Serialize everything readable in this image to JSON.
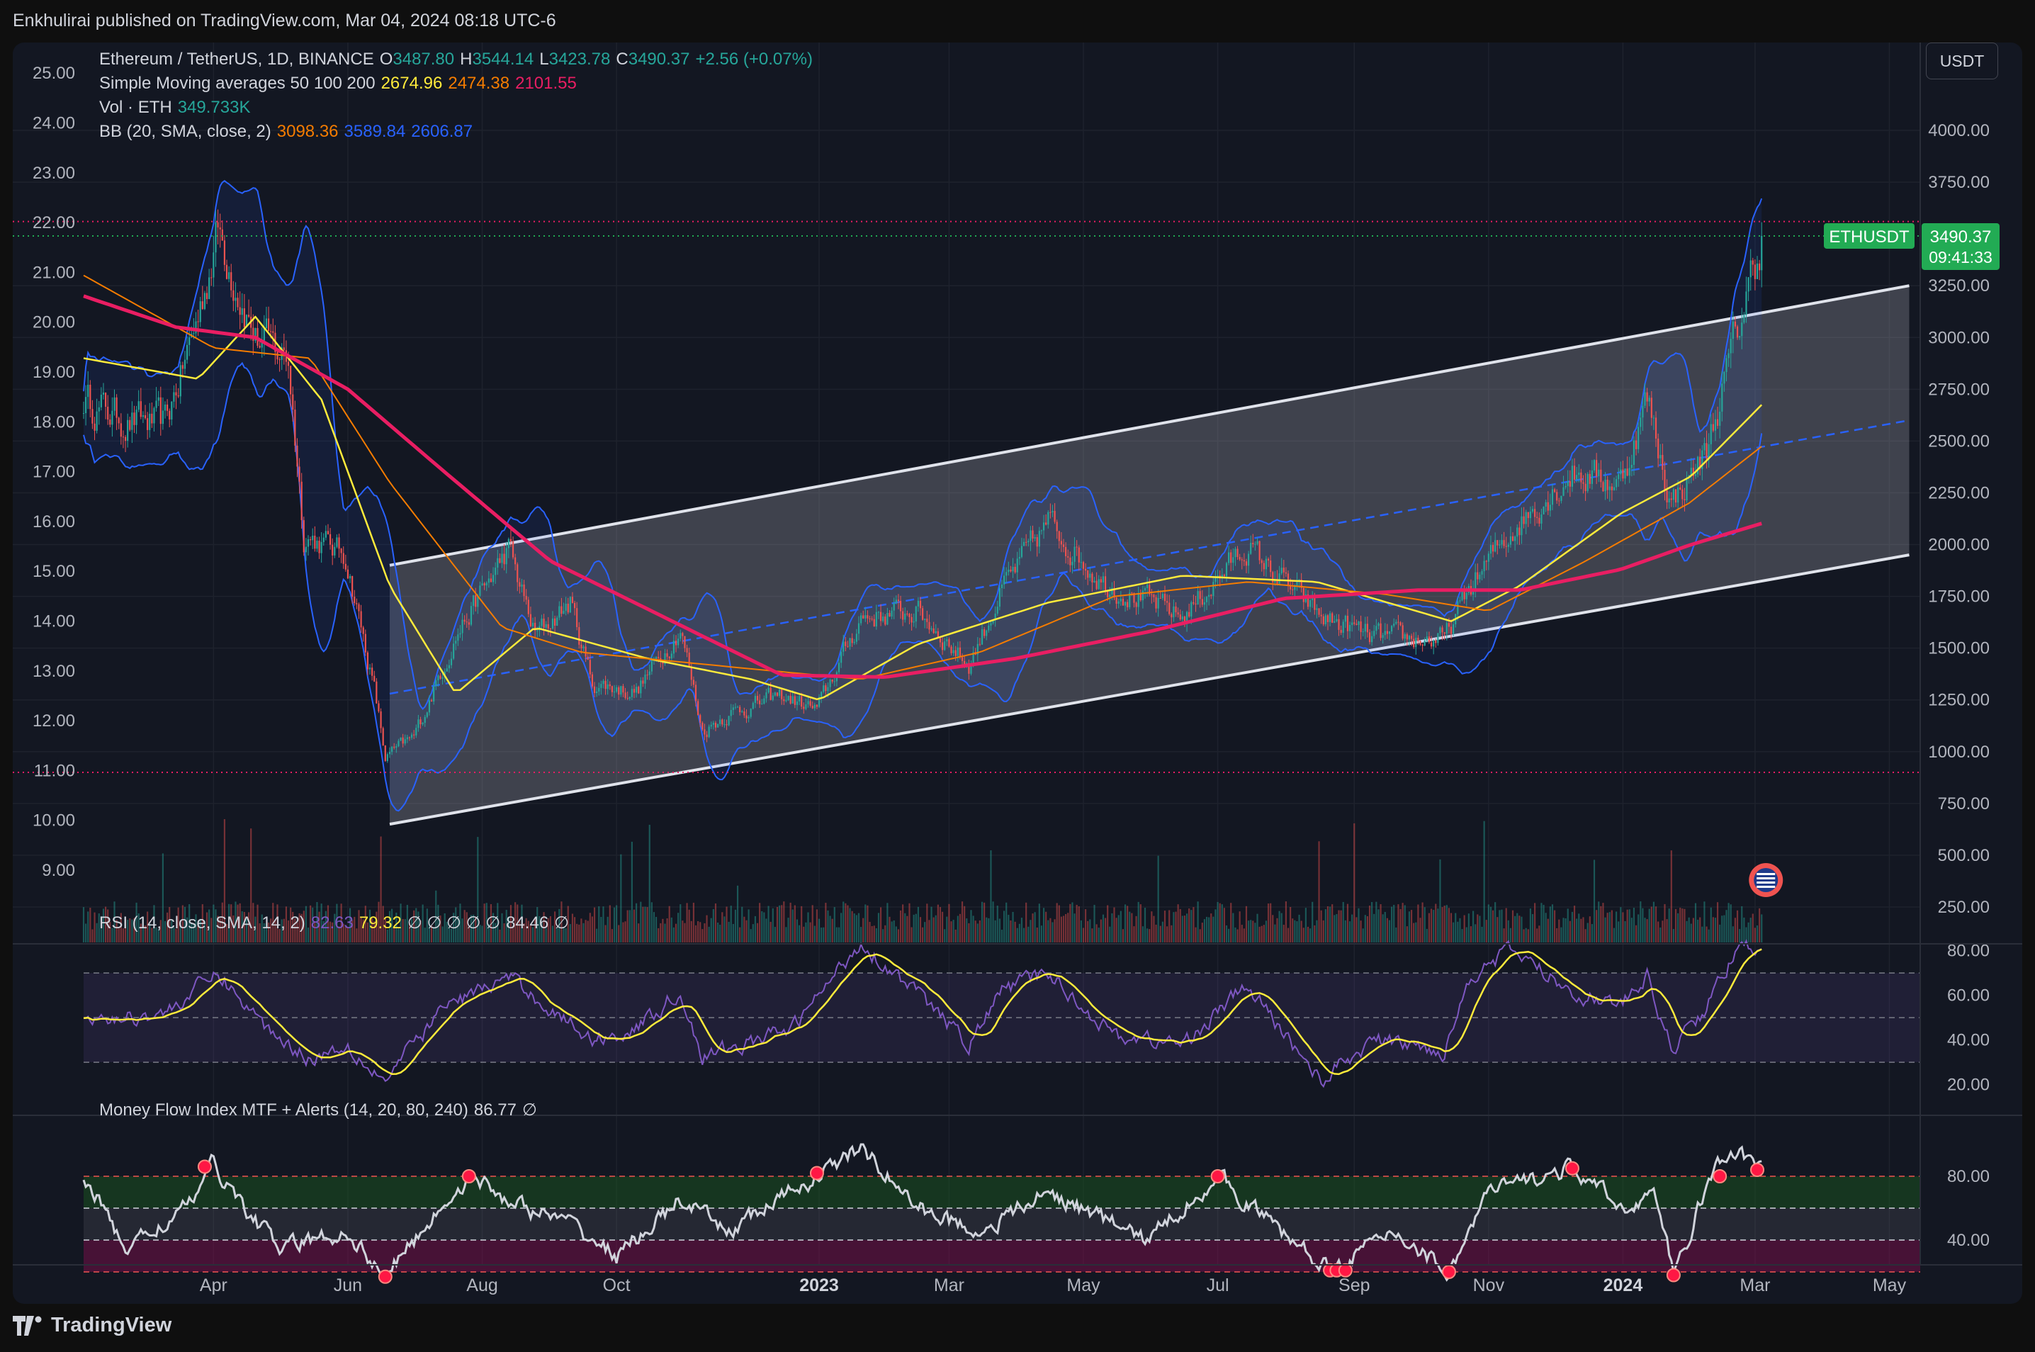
{
  "publisher_line": "Enkhulirai published on TradingView.com, Mar 04, 2024 08:18 UTC-6",
  "footer": {
    "logo_text": "TradingView"
  },
  "currency_button": "USDT",
  "legend": {
    "symbol": "Ethereum / TetherUS, 1D, BINANCE",
    "o_label": "O",
    "o_value": "3487.80",
    "h_label": "H",
    "h_value": "3544.14",
    "l_label": "L",
    "l_value": "3423.78",
    "c_label": "C",
    "c_value": "3490.37",
    "change": "+2.56 (+0.07%)",
    "sma_label": "Simple Moving averages 50 100 200",
    "sma50": "2674.96",
    "sma100": "2474.38",
    "sma200": "2101.55",
    "vol_label": "Vol · ETH",
    "vol_value": "349.733K",
    "bb_label": "BB (20, SMA, close, 2)",
    "bb_basis": "3098.36",
    "bb_upper": "3589.84",
    "bb_lower": "2606.87",
    "rsi_label": "RSI (14, close, SMA, 14, 2)",
    "rsi_value": "82.63",
    "rsi_ma": "79.32",
    "rsi_null": "∅ ∅ ∅ ∅ ∅",
    "rsi_extra": "84.46",
    "rsi_null2": "∅",
    "mfi_label": "Money Flow Index MTF + Alerts (14, 20, 80, 240)",
    "mfi_value": "86.77",
    "mfi_null": "∅"
  },
  "price_badge": {
    "symbol": "ETHUSDT",
    "price": "3490.37",
    "countdown": "09:41:33"
  },
  "colors": {
    "background": "#131722",
    "up": "#26a69a",
    "down": "#ef5350",
    "sma50": "#ffeb3b",
    "sma100": "#f57c00",
    "sma200": "#e91e63",
    "bb_band": "#2962ff",
    "rsi": "#7e57c2",
    "mfi": "#d1d4dc",
    "channel": "#e0e3eb",
    "badge": "#22ab54"
  },
  "chart_data": [
    {
      "type": "candlestick",
      "title": "Ethereum / TetherUS, 1D, BINANCE",
      "right_axis": {
        "label": "USDT",
        "ticks": [
          "250.00",
          "500.00",
          "750.00",
          "1000.00",
          "1250.00",
          "1500.00",
          "1750.00",
          "2000.00",
          "2250.00",
          "2500.00",
          "2750.00",
          "3000.00",
          "3250.00",
          "3750.00",
          "4000.00"
        ]
      },
      "left_axis": {
        "ticks": [
          "9.00",
          "10.00",
          "11.00",
          "12.00",
          "13.00",
          "14.00",
          "15.00",
          "16.00",
          "17.00",
          "18.00",
          "19.00",
          "20.00",
          "21.00",
          "22.00",
          "23.00",
          "24.00",
          "25.00"
        ]
      },
      "x_ticks": [
        "Apr",
        "Jun",
        "Aug",
        "Oct",
        "2023",
        "Mar",
        "May",
        "Jul",
        "Sep",
        "Nov",
        "2024",
        "Mar",
        "May"
      ],
      "price_anchors": [
        [
          "2022-02-01",
          2700
        ],
        [
          "2022-02-20",
          2600
        ],
        [
          "2022-03-10",
          2580
        ],
        [
          "2022-03-25",
          3100
        ],
        [
          "2022-04-03",
          3520
        ],
        [
          "2022-04-20",
          3000
        ],
        [
          "2022-05-05",
          2900
        ],
        [
          "2022-05-12",
          2050
        ],
        [
          "2022-05-31",
          1950
        ],
        [
          "2022-06-13",
          1300
        ],
        [
          "2022-06-18",
          970
        ],
        [
          "2022-07-01",
          1070
        ],
        [
          "2022-07-20",
          1560
        ],
        [
          "2022-08-13",
          1980
        ],
        [
          "2022-08-25",
          1560
        ],
        [
          "2022-09-10",
          1720
        ],
        [
          "2022-09-20",
          1330
        ],
        [
          "2022-10-10",
          1290
        ],
        [
          "2022-10-30",
          1600
        ],
        [
          "2022-11-09",
          1100
        ],
        [
          "2022-11-20",
          1180
        ],
        [
          "2022-12-15",
          1270
        ],
        [
          "2022-12-31",
          1200
        ],
        [
          "2023-01-20",
          1650
        ],
        [
          "2023-02-15",
          1680
        ],
        [
          "2023-03-10",
          1420
        ],
        [
          "2023-03-25",
          1780
        ],
        [
          "2023-04-15",
          2110
        ],
        [
          "2023-05-10",
          1820
        ],
        [
          "2023-06-15",
          1650
        ],
        [
          "2023-07-14",
          1990
        ],
        [
          "2023-08-17",
          1650
        ],
        [
          "2023-09-10",
          1550
        ],
        [
          "2023-10-12",
          1540
        ],
        [
          "2023-10-24",
          1800
        ],
        [
          "2023-11-12",
          2080
        ],
        [
          "2023-12-09",
          2350
        ],
        [
          "2023-12-31",
          2300
        ],
        [
          "2024-01-12",
          2700
        ],
        [
          "2024-01-23",
          2200
        ],
        [
          "2024-02-08",
          2450
        ],
        [
          "2024-02-20",
          2950
        ],
        [
          "2024-03-04",
          3490
        ]
      ],
      "sma": [
        {
          "name": "50",
          "points": [
            [
              "2022-02-01",
              2900
            ],
            [
              "2022-03-25",
              2800
            ],
            [
              "2022-04-20",
              3100
            ],
            [
              "2022-05-20",
              2700
            ],
            [
              "2022-06-20",
              1800
            ],
            [
              "2022-07-20",
              1280
            ],
            [
              "2022-08-25",
              1600
            ],
            [
              "2022-10-15",
              1450
            ],
            [
              "2022-12-01",
              1350
            ],
            [
              "2023-01-01",
              1250
            ],
            [
              "2023-02-15",
              1520
            ],
            [
              "2023-04-15",
              1720
            ],
            [
              "2023-06-15",
              1850
            ],
            [
              "2023-08-15",
              1820
            ],
            [
              "2023-10-15",
              1630
            ],
            [
              "2023-11-15",
              1800
            ],
            [
              "2023-12-31",
              2150
            ],
            [
              "2024-02-01",
              2330
            ],
            [
              "2024-03-04",
              2675
            ]
          ]
        },
        {
          "name": "100",
          "points": [
            [
              "2022-02-01",
              3300
            ],
            [
              "2022-04-01",
              2950
            ],
            [
              "2022-05-15",
              2900
            ],
            [
              "2022-06-20",
              2300
            ],
            [
              "2022-08-10",
              1600
            ],
            [
              "2022-09-15",
              1480
            ],
            [
              "2022-12-01",
              1400
            ],
            [
              "2023-01-20",
              1350
            ],
            [
              "2023-03-15",
              1480
            ],
            [
              "2023-05-15",
              1750
            ],
            [
              "2023-07-15",
              1820
            ],
            [
              "2023-09-15",
              1760
            ],
            [
              "2023-11-01",
              1680
            ],
            [
              "2023-12-15",
              1920
            ],
            [
              "2024-01-31",
              2200
            ],
            [
              "2024-03-04",
              2474
            ]
          ]
        },
        {
          "name": "200",
          "points": [
            [
              "2022-02-01",
              3200
            ],
            [
              "2022-03-15",
              3050
            ],
            [
              "2022-04-20",
              3000
            ],
            [
              "2022-06-01",
              2750
            ],
            [
              "2022-07-15",
              2350
            ],
            [
              "2022-09-01",
              1920
            ],
            [
              "2022-11-01",
              1600
            ],
            [
              "2022-12-15",
              1370
            ],
            [
              "2023-01-31",
              1360
            ],
            [
              "2023-03-31",
              1450
            ],
            [
              "2023-05-31",
              1580
            ],
            [
              "2023-07-31",
              1740
            ],
            [
              "2023-09-30",
              1780
            ],
            [
              "2023-11-15",
              1780
            ],
            [
              "2023-12-31",
              1880
            ],
            [
              "2024-02-01",
              2000
            ],
            [
              "2024-03-04",
              2102
            ]
          ]
        }
      ],
      "channel": {
        "upper": [
          [
            "2022-06-20",
            1900
          ],
          [
            "2024-05-10",
            3250
          ]
        ],
        "lower": [
          [
            "2022-06-20",
            650
          ],
          [
            "2024-05-10",
            1950
          ]
        ],
        "mid": [
          [
            "2022-06-20",
            1280
          ],
          [
            "2024-05-10",
            2600
          ]
        ]
      },
      "hlines": [
        3560,
        900
      ]
    },
    {
      "type": "line",
      "title": "RSI (14, close, SMA, 14, 2)",
      "ylim": [
        15,
        88
      ],
      "y_ticks": [
        "20.00",
        "40.00",
        "60.00",
        "80.00"
      ],
      "levels": [
        30,
        50,
        70
      ],
      "anchors": [
        [
          "2022-02-01",
          48
        ],
        [
          "2022-03-10",
          52
        ],
        [
          "2022-04-03",
          70
        ],
        [
          "2022-04-25",
          45
        ],
        [
          "2022-05-15",
          32
        ],
        [
          "2022-06-01",
          38
        ],
        [
          "2022-06-18",
          22
        ],
        [
          "2022-07-15",
          55
        ],
        [
          "2022-08-13",
          68
        ],
        [
          "2022-09-20",
          40
        ],
        [
          "2022-10-10",
          45
        ],
        [
          "2022-10-30",
          62
        ],
        [
          "2022-11-09",
          32
        ],
        [
          "2022-12-20",
          45
        ],
        [
          "2023-01-20",
          84
        ],
        [
          "2023-02-15",
          60
        ],
        [
          "2023-03-10",
          38
        ],
        [
          "2023-03-25",
          62
        ],
        [
          "2023-04-15",
          70
        ],
        [
          "2023-05-15",
          42
        ],
        [
          "2023-06-15",
          38
        ],
        [
          "2023-07-14",
          64
        ],
        [
          "2023-08-17",
          22
        ],
        [
          "2023-09-10",
          40
        ],
        [
          "2023-10-12",
          35
        ],
        [
          "2023-10-24",
          70
        ],
        [
          "2023-11-12",
          80
        ],
        [
          "2023-12-09",
          62
        ],
        [
          "2023-12-31",
          55
        ],
        [
          "2024-01-12",
          68
        ],
        [
          "2024-01-23",
          36
        ],
        [
          "2024-02-08",
          55
        ],
        [
          "2024-02-20",
          78
        ],
        [
          "2024-03-04",
          83
        ]
      ]
    },
    {
      "type": "line",
      "title": "Money Flow Index MTF + Alerts (14, 20, 80, 240)",
      "ylim": [
        10,
        105
      ],
      "y_ticks": [
        "40.00",
        "80.00"
      ],
      "levels": [
        20,
        40,
        60,
        80
      ],
      "anchors": [
        [
          "2022-02-01",
          80
        ],
        [
          "2022-02-20",
          35
        ],
        [
          "2022-03-20",
          60
        ],
        [
          "2022-04-01",
          88
        ],
        [
          "2022-04-15",
          60
        ],
        [
          "2022-05-01",
          35
        ],
        [
          "2022-06-01",
          45
        ],
        [
          "2022-06-18",
          17
        ],
        [
          "2022-07-10",
          55
        ],
        [
          "2022-07-26",
          80
        ],
        [
          "2022-08-20",
          60
        ],
        [
          "2022-09-10",
          50
        ],
        [
          "2022-10-01",
          30
        ],
        [
          "2022-10-30",
          65
        ],
        [
          "2022-11-20",
          45
        ],
        [
          "2022-12-31",
          80
        ],
        [
          "2023-01-20",
          98
        ],
        [
          "2023-02-15",
          60
        ],
        [
          "2023-03-15",
          45
        ],
        [
          "2023-04-15",
          70
        ],
        [
          "2023-05-30",
          40
        ],
        [
          "2023-07-01",
          80
        ],
        [
          "2023-07-30",
          45
        ],
        [
          "2023-08-20",
          22
        ],
        [
          "2023-09-20",
          45
        ],
        [
          "2023-10-14",
          20
        ],
        [
          "2023-11-01",
          70
        ],
        [
          "2023-12-09",
          85
        ],
        [
          "2023-12-31",
          60
        ],
        [
          "2024-01-15",
          70
        ],
        [
          "2024-01-24",
          18
        ],
        [
          "2024-02-10",
          80
        ],
        [
          "2024-02-19",
          96
        ],
        [
          "2024-03-04",
          87
        ]
      ],
      "alerts": [
        [
          "2022-03-28",
          86
        ],
        [
          "2022-06-18",
          17
        ],
        [
          "2022-07-26",
          80
        ],
        [
          "2022-12-31",
          82
        ],
        [
          "2023-07-01",
          80
        ],
        [
          "2023-08-21",
          21
        ],
        [
          "2023-08-24",
          21
        ],
        [
          "2023-08-28",
          21
        ],
        [
          "2023-10-14",
          20
        ],
        [
          "2023-12-09",
          85
        ],
        [
          "2024-01-24",
          18
        ],
        [
          "2024-02-14",
          80
        ],
        [
          "2024-03-02",
          84
        ]
      ]
    }
  ]
}
